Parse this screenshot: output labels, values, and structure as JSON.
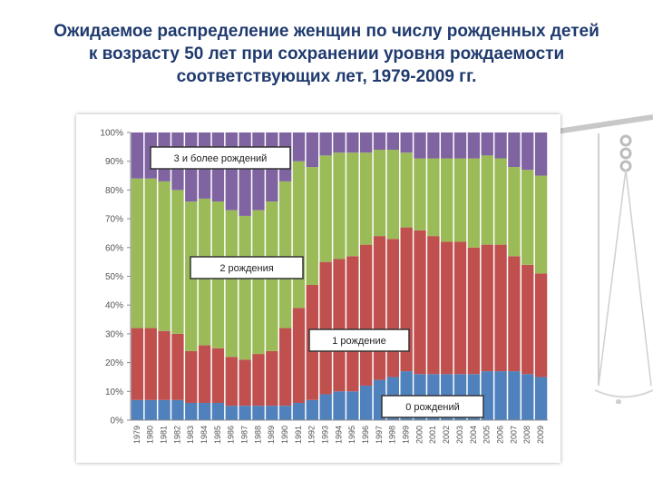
{
  "slide": {
    "title_lines": [
      "Ожидаемое распределение женщин по числу рожденных детей",
      "к возрасту 50 лет при сохранении уровня рождаемости",
      "соответствующих лет, 1979-2009 гг."
    ]
  },
  "chart_data": {
    "type": "bar",
    "stacked": true,
    "normalized_percent": true,
    "categories": [
      "1979",
      "1980",
      "1981",
      "1982",
      "1983",
      "1984",
      "1985",
      "1986",
      "1987",
      "1988",
      "1989",
      "1990",
      "1991",
      "1992",
      "1993",
      "1994",
      "1995",
      "1996",
      "1997",
      "1998",
      "1999",
      "2000",
      "2001",
      "2002",
      "2003",
      "2004",
      "2005",
      "2006",
      "2007",
      "2008",
      "2009"
    ],
    "series": [
      {
        "name": "0 рождений",
        "color": "#4f81bd",
        "values": [
          7,
          7,
          7,
          7,
          6,
          6,
          6,
          5,
          5,
          5,
          5,
          5,
          6,
          7,
          9,
          10,
          10,
          12,
          14,
          15,
          17,
          16,
          16,
          16,
          16,
          16,
          17,
          17,
          17,
          16,
          15
        ]
      },
      {
        "name": "1 рождение",
        "color": "#c0504d",
        "values": [
          25,
          25,
          24,
          23,
          18,
          20,
          19,
          17,
          16,
          18,
          19,
          27,
          33,
          40,
          46,
          46,
          47,
          49,
          50,
          48,
          50,
          50,
          48,
          46,
          46,
          44,
          44,
          44,
          40,
          38,
          36
        ]
      },
      {
        "name": "2 рождения",
        "color": "#9bbb59",
        "values": [
          52,
          52,
          52,
          50,
          52,
          51,
          51,
          51,
          50,
          50,
          52,
          51,
          51,
          41,
          37,
          37,
          36,
          32,
          30,
          31,
          26,
          25,
          27,
          29,
          29,
          31,
          31,
          30,
          31,
          33,
          34
        ]
      },
      {
        "name": "3 и более рождений",
        "color": "#8064a2",
        "values": [
          16,
          16,
          17,
          20,
          24,
          23,
          24,
          27,
          29,
          27,
          24,
          17,
          10,
          12,
          8,
          7,
          7,
          7,
          6,
          6,
          7,
          9,
          9,
          9,
          9,
          9,
          8,
          9,
          12,
          13,
          15
        ]
      }
    ],
    "yticks": [
      "0%",
      "10%",
      "20%",
      "30%",
      "40%",
      "50%",
      "60%",
      "70%",
      "80%",
      "90%",
      "100%"
    ],
    "ylim": [
      0,
      100
    ],
    "xlabel": "",
    "ylabel": "",
    "grid": false,
    "legend": "inline labels on chart"
  }
}
